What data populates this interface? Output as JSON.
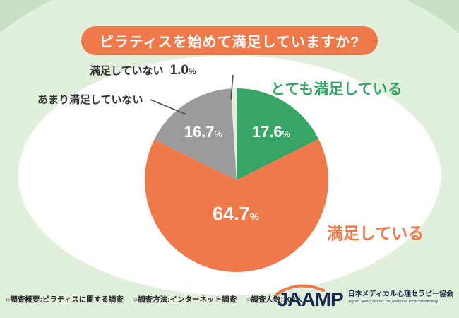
{
  "title": "ピラティスを始めて満足していますか?",
  "colors": {
    "accent_orange": "#ee7a4b",
    "accent_green": "#36a566",
    "gray": "#9b9b9c",
    "light_gray": "#e9e9e7",
    "background_green": "#c8e0c4",
    "text_dark": "#2f2f2f",
    "logo_navy": "#16294e"
  },
  "chart_data": {
    "type": "pie",
    "title": "ピラティスを始めて満足していますか?",
    "unit": "%",
    "direction": "clockwise",
    "start_angle_deg": 0,
    "slices": [
      {
        "key": "very-satisfied",
        "label": "とても満足している",
        "value": 17.6,
        "value_str": "17.6",
        "color": "#36a566"
      },
      {
        "key": "satisfied",
        "label": "満足している",
        "value": 64.7,
        "value_str": "64.7",
        "color": "#ee7a4b"
      },
      {
        "key": "not-very-satisfied",
        "label": "あまり満足していない",
        "value": 16.7,
        "value_str": "16.7",
        "color": "#9b9b9c"
      },
      {
        "key": "not-satisfied",
        "label": "満足していない",
        "value": 1.0,
        "value_str": "1.0",
        "color": "#e9e9e7"
      }
    ]
  },
  "footer": {
    "items": [
      "○調査概要:ピラティスに関する調査",
      "○調査方法:インターネット調査",
      "○調査人数:102人"
    ]
  },
  "logo": {
    "name": "JAAMP",
    "jp": "日本メディカル心理セラピー協会",
    "en": "Japan Association for Medical Psychotherapy"
  }
}
